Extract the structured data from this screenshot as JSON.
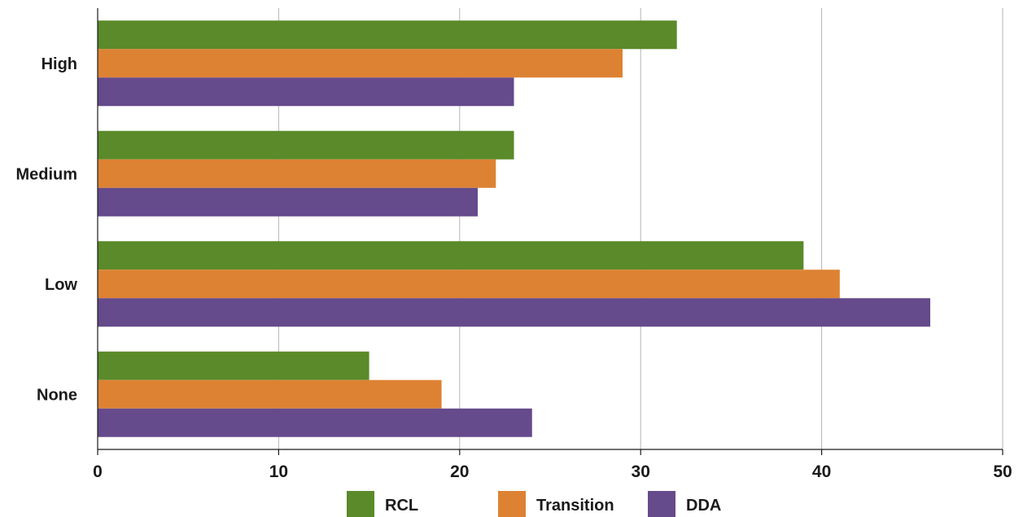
{
  "chart_data": {
    "type": "bar",
    "orientation": "horizontal",
    "categories": [
      "High",
      "Medium",
      "Low",
      "None"
    ],
    "series": [
      {
        "name": "RCL",
        "color": "#5a8a29",
        "values": [
          32,
          23,
          39,
          15
        ]
      },
      {
        "name": "Transition",
        "color": "#dd8233",
        "values": [
          29,
          22,
          41,
          19
        ]
      },
      {
        "name": "DDA",
        "color": "#654a8c",
        "values": [
          23,
          21,
          46,
          24
        ]
      }
    ],
    "x_ticks": [
      "0",
      "10",
      "20",
      "30",
      "40",
      "50"
    ],
    "xlim": [
      0,
      50
    ],
    "grid": "vertical",
    "legend_position": "bottom-center",
    "title": "",
    "xlabel": "",
    "ylabel": ""
  }
}
